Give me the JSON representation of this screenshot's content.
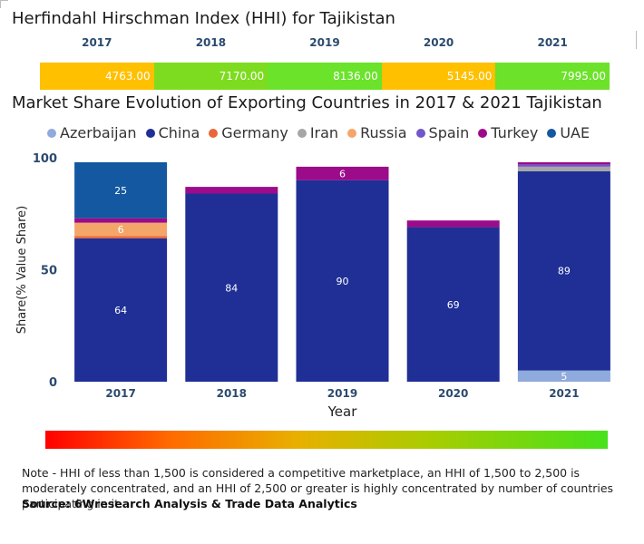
{
  "hhi": {
    "title": "Herfindahl Hirschman Index (HHI) for Tajikistan",
    "entries": [
      {
        "year": "2017",
        "value": "4763.00",
        "color": "#ffc000"
      },
      {
        "year": "2018",
        "value": "7170.00",
        "color": "#7ddc1f"
      },
      {
        "year": "2019",
        "value": "8136.00",
        "color": "#6ae32a"
      },
      {
        "year": "2020",
        "value": "5145.00",
        "color": "#ffc000"
      },
      {
        "year": "2021",
        "value": "7995.00",
        "color": "#6ce22a"
      }
    ]
  },
  "legend": [
    {
      "label": "Azerbaijan",
      "color": "#8faadc"
    },
    {
      "label": "China",
      "color": "#1f2f96"
    },
    {
      "label": "Germany",
      "color": "#e8663a"
    },
    {
      "label": "Iran",
      "color": "#a6a6a6"
    },
    {
      "label": "Russia",
      "color": "#f4a66a"
    },
    {
      "label": "Spain",
      "color": "#7356c9"
    },
    {
      "label": "Turkey",
      "color": "#9b0b8a"
    },
    {
      "label": "UAE",
      "color": "#1358a0"
    }
  ],
  "chart_data": {
    "type": "bar",
    "stacked": true,
    "title": "Market Share Evolution of Exporting Countries in 2017 & 2021 Tajikistan",
    "xlabel": "Year",
    "ylabel": "Share(% Value Share)",
    "categories": [
      "2017",
      "2018",
      "2019",
      "2020",
      "2021"
    ],
    "ylim": [
      0,
      100
    ],
    "yticks": [
      "0",
      "50",
      "100"
    ],
    "series": [
      {
        "name": "Azerbaijan",
        "color": "#8faadc",
        "values": [
          0,
          0,
          0,
          0,
          5
        ],
        "labels": [
          "",
          "",
          "",
          "",
          "5"
        ]
      },
      {
        "name": "China",
        "color": "#1f2f96",
        "values": [
          64,
          84,
          90,
          69,
          89
        ],
        "labels": [
          "64",
          "84",
          "90",
          "69",
          "89"
        ]
      },
      {
        "name": "Germany",
        "color": "#e8663a",
        "values": [
          1,
          0,
          0,
          0,
          0
        ],
        "labels": [
          "",
          "",
          "",
          "",
          ""
        ]
      },
      {
        "name": "Iran",
        "color": "#a6a6a6",
        "values": [
          0,
          0,
          0,
          0,
          2
        ],
        "labels": [
          "",
          "",
          "",
          "",
          ""
        ]
      },
      {
        "name": "Russia",
        "color": "#f4a66a",
        "values": [
          6,
          0,
          0,
          0,
          0
        ],
        "labels": [
          "6",
          "",
          "",
          "",
          ""
        ]
      },
      {
        "name": "Spain",
        "color": "#7356c9",
        "values": [
          0,
          0,
          0,
          0,
          1
        ],
        "labels": [
          "",
          "",
          "",
          "",
          ""
        ]
      },
      {
        "name": "Turkey",
        "color": "#9b0b8a",
        "values": [
          2,
          3,
          6,
          3,
          1
        ],
        "labels": [
          "",
          "",
          "6",
          "",
          ""
        ]
      },
      {
        "name": "UAE",
        "color": "#1358a0",
        "values": [
          25,
          0,
          0,
          0,
          0
        ],
        "labels": [
          "25",
          "",
          "",
          "",
          ""
        ]
      }
    ]
  },
  "note": "Note - HHI of less than 1,500 is considered a competitive marketplace, an HHI of 1,500 to 2,500 is moderately concentrated, and an HHI of 2,500 or greater is highly concentrated by number of countries participating in it.",
  "source": "Source: 6Wresearch Analysis & Trade Data Analytics"
}
